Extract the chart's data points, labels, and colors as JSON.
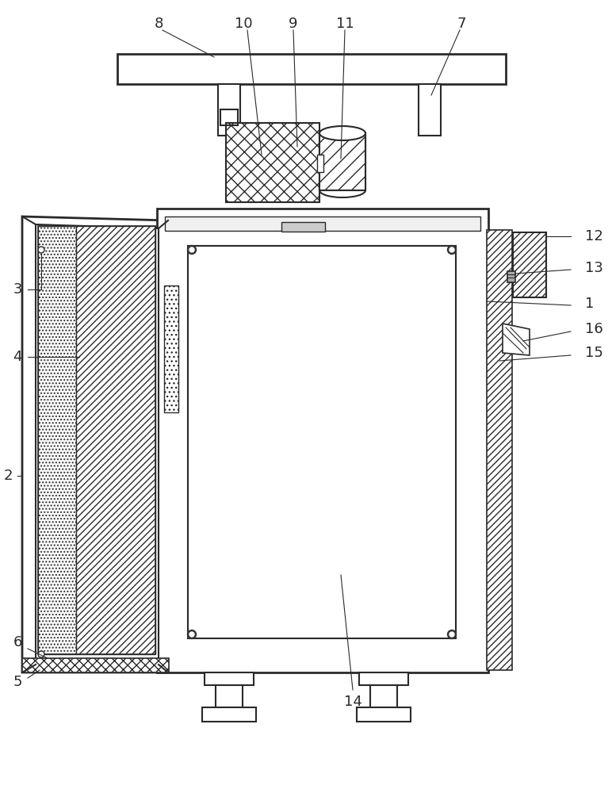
{
  "bg_color": "#ffffff",
  "line_color": "#2a2a2a",
  "figsize": [
    7.72,
    10.0
  ],
  "dpi": 100,
  "ann_fontsize": 13
}
